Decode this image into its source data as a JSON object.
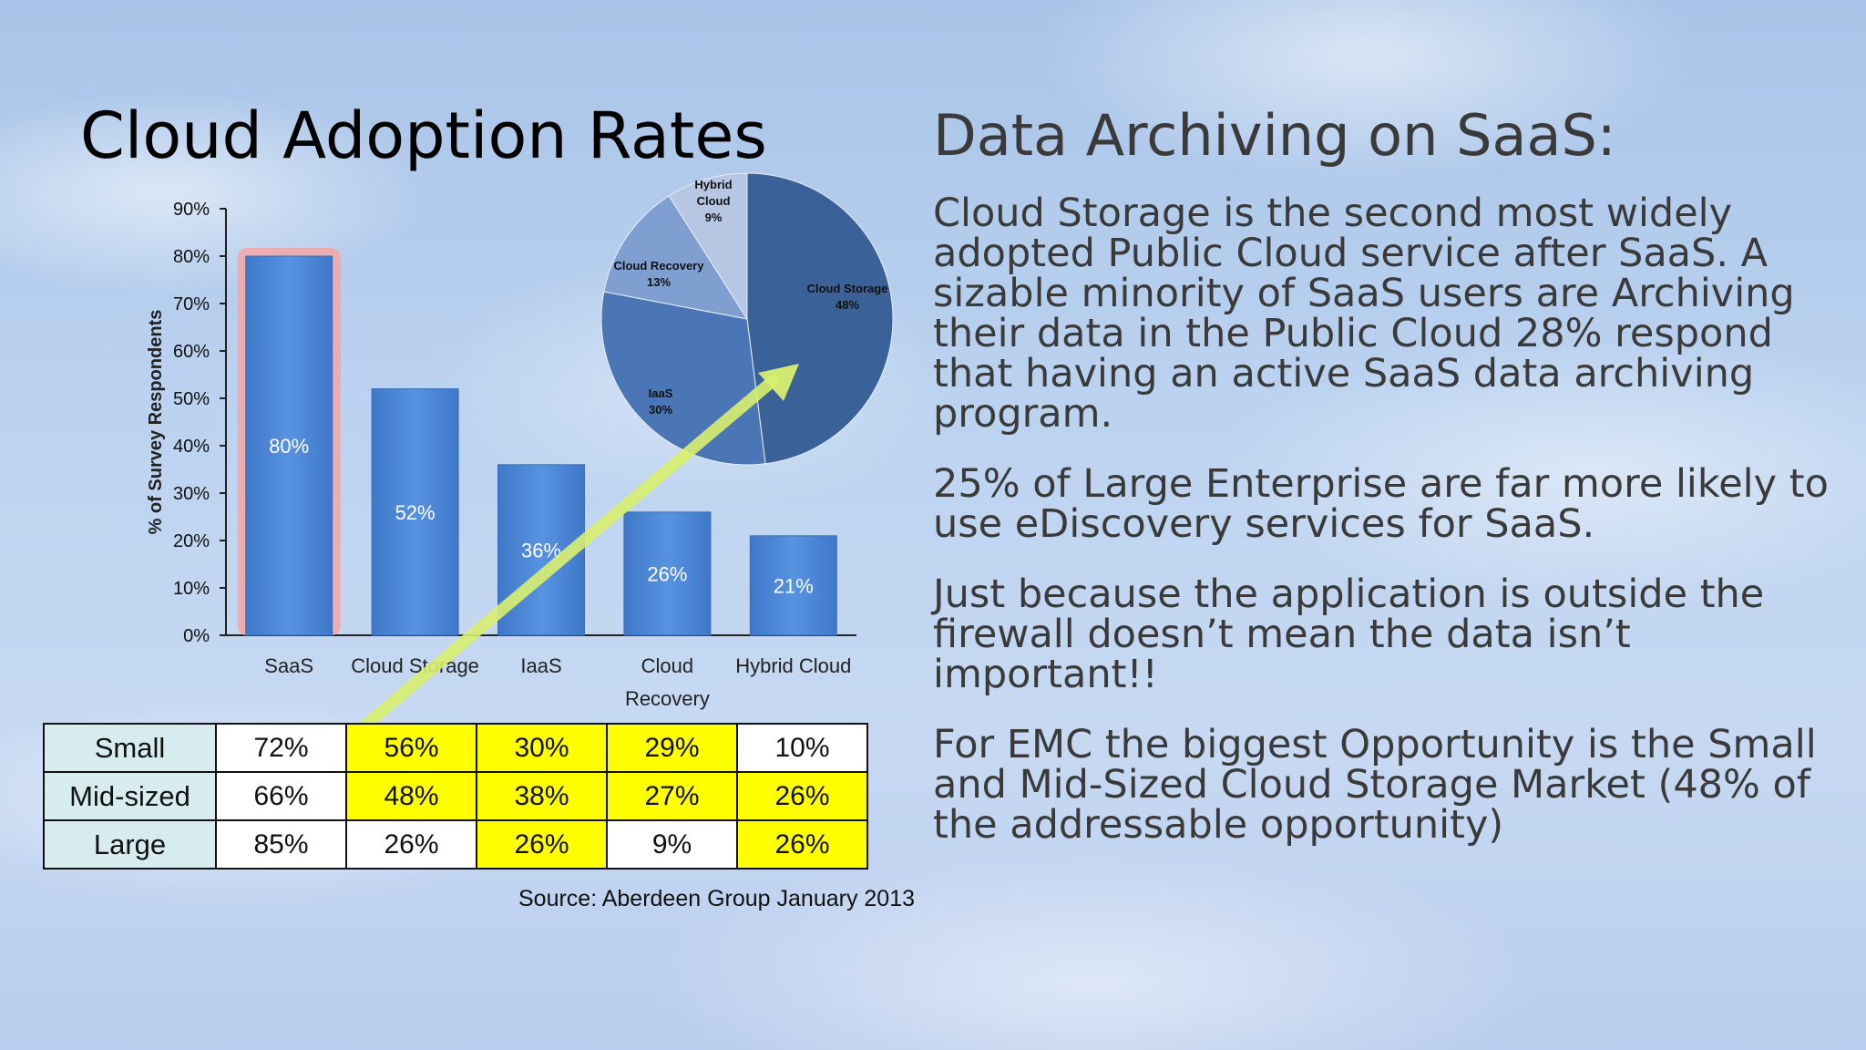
{
  "slide_title": "Cloud Adoption Rates",
  "right_panel": {
    "title": "Data Archiving on SaaS:",
    "paragraphs": [
      "Cloud Storage is the second most widely adopted Public Cloud service after SaaS. A sizable minority of SaaS users are Archiving their data in the Public Cloud 28% respond that having an active SaaS data archiving program.",
      "25% of Large Enterprise are far more likely to use eDiscovery services for SaaS.",
      "Just because the application is outside the firewall doesn’t mean the data isn’t important!!",
      "For EMC the biggest Opportunity is the Small and Mid-Sized Cloud Storage Market (48% of the addressable opportunity)"
    ]
  },
  "chart_data": [
    {
      "type": "bar",
      "categories": [
        "SaaS",
        "Cloud Storage",
        "IaaS",
        "Cloud Recovery",
        "Hybrid Cloud"
      ],
      "values": [
        80,
        52,
        36,
        26,
        21
      ],
      "data_labels": [
        "80%",
        "52%",
        "36%",
        "26%",
        "21%"
      ],
      "ylabel": "% of Survey Respondents",
      "ylim": [
        0,
        90
      ],
      "yticks": [
        "0%",
        "10%",
        "20%",
        "30%",
        "40%",
        "50%",
        "60%",
        "70%",
        "80%",
        "90%"
      ],
      "bar_color": "#4a86d6",
      "highlight_color": "#f4a6a6"
    },
    {
      "type": "pie",
      "categories": [
        "Cloud Storage",
        "IaaS",
        "Cloud Recovery",
        "Hybrid Cloud"
      ],
      "values": [
        48,
        30,
        13,
        9
      ],
      "data_labels": [
        "48%",
        "30%",
        "13%",
        "9%"
      ],
      "colors": [
        "#3b6199",
        "#4a76b5",
        "#7f9fd0",
        "#b7c6e2"
      ]
    },
    {
      "type": "table",
      "columns": [
        "SaaS",
        "Cloud Storage",
        "IaaS",
        "Cloud Recovery",
        "Hybrid Cloud"
      ],
      "rows": [
        {
          "label": "Small",
          "values": [
            "72%",
            "56%",
            "30%",
            "29%",
            "10%"
          ],
          "highlight": [
            false,
            true,
            true,
            true,
            false
          ]
        },
        {
          "label": "Mid-sized",
          "values": [
            "66%",
            "48%",
            "38%",
            "27%",
            "26%"
          ],
          "highlight": [
            false,
            true,
            true,
            true,
            true
          ]
        },
        {
          "label": "Large",
          "values": [
            "85%",
            "26%",
            "26%",
            "9%",
            "26%"
          ],
          "highlight": [
            false,
            false,
            true,
            false,
            true
          ]
        }
      ],
      "highlight_color": "#ffff00"
    }
  ],
  "source": "Source: Aberdeen Group January 2013",
  "colors": {
    "arrow": "#d8ef6e",
    "title": "#000000",
    "body_text": "#3a3a3a"
  }
}
